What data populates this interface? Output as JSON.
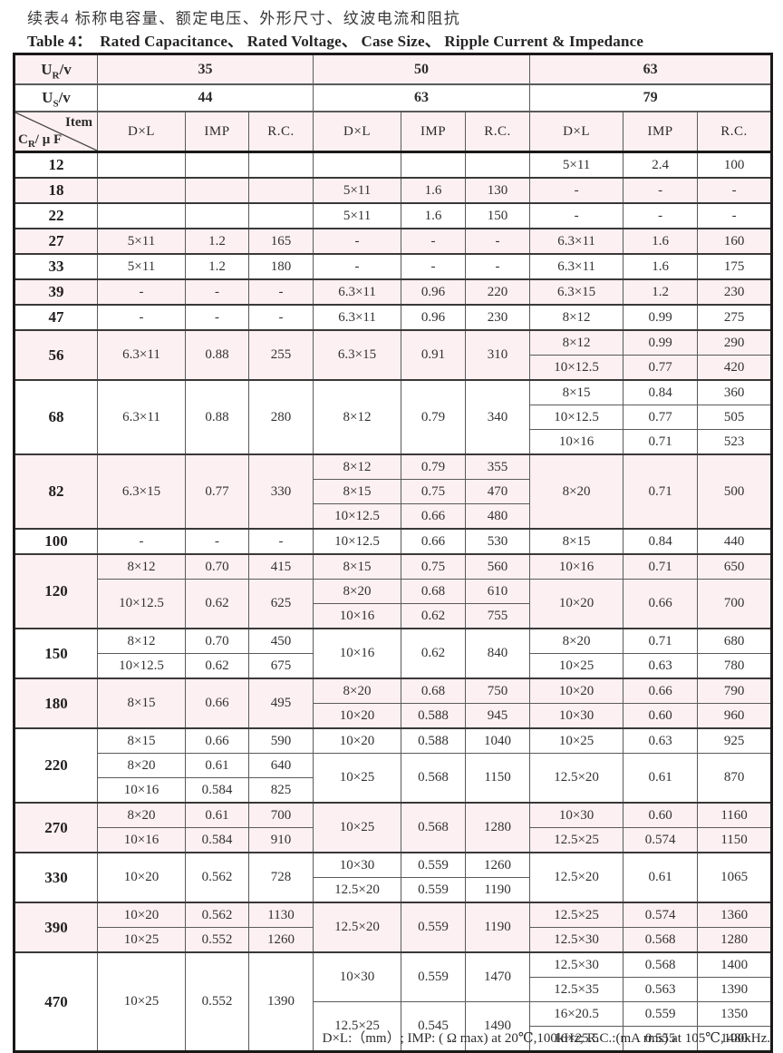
{
  "page": {
    "title_cn": "续表4 标称电容量、额定电压、外形尺寸、纹波电流和阻抗",
    "title_en_label": "Table 4：",
    "title_en": "Rated Capacitance、 Rated Voltage、 Case Size、 Ripple Current & Impedance",
    "footnote": "D×L:（mm）; IMP: ( Ω max) at 20℃,100kHz; R.C.:(mA rms) at 105℃,100kHz."
  },
  "colors": {
    "row_highlight": "#fcf0f2",
    "border_dark": "#1b1918",
    "text": "#2d2b2b"
  },
  "table": {
    "rated_voltage_label": [
      "U",
      "R",
      "/v"
    ],
    "surge_voltage_label": [
      "U",
      "S",
      "/v"
    ],
    "item_label": "Item",
    "cr_label": [
      "C",
      "R",
      "/ μ F"
    ],
    "voltages": [
      "35",
      "50",
      "63"
    ],
    "surge_voltages": [
      "44",
      "63",
      "79"
    ],
    "col_headers": [
      "D×L",
      "IMP",
      "R.C."
    ],
    "rows": [
      {
        "cr": "12",
        "subrows": 1,
        "shaded": false,
        "groups": {
          "v35": [
            {
              "span": 1,
              "dxl": "",
              "imp": "",
              "rc": ""
            }
          ],
          "v50": [
            {
              "span": 1,
              "dxl": "",
              "imp": "",
              "rc": ""
            }
          ],
          "v63": [
            {
              "span": 1,
              "dxl": "5×11",
              "imp": "2.4",
              "rc": "100"
            }
          ]
        }
      },
      {
        "cr": "18",
        "subrows": 1,
        "shaded": true,
        "groups": {
          "v35": [
            {
              "span": 1,
              "dxl": "",
              "imp": "",
              "rc": ""
            }
          ],
          "v50": [
            {
              "span": 1,
              "dxl": "5×11",
              "imp": "1.6",
              "rc": "130"
            }
          ],
          "v63": [
            {
              "span": 1,
              "dxl": "-",
              "imp": "-",
              "rc": "-"
            }
          ]
        }
      },
      {
        "cr": "22",
        "subrows": 1,
        "shaded": false,
        "groups": {
          "v35": [
            {
              "span": 1,
              "dxl": "",
              "imp": "",
              "rc": ""
            }
          ],
          "v50": [
            {
              "span": 1,
              "dxl": "5×11",
              "imp": "1.6",
              "rc": "150"
            }
          ],
          "v63": [
            {
              "span": 1,
              "dxl": "-",
              "imp": "-",
              "rc": "-"
            }
          ]
        }
      },
      {
        "cr": "27",
        "subrows": 1,
        "shaded": true,
        "groups": {
          "v35": [
            {
              "span": 1,
              "dxl": "5×11",
              "imp": "1.2",
              "rc": "165"
            }
          ],
          "v50": [
            {
              "span": 1,
              "dxl": "-",
              "imp": "-",
              "rc": "-"
            }
          ],
          "v63": [
            {
              "span": 1,
              "dxl": "6.3×11",
              "imp": "1.6",
              "rc": "160"
            }
          ]
        }
      },
      {
        "cr": "33",
        "subrows": 1,
        "shaded": false,
        "groups": {
          "v35": [
            {
              "span": 1,
              "dxl": "5×11",
              "imp": "1.2",
              "rc": "180"
            }
          ],
          "v50": [
            {
              "span": 1,
              "dxl": "-",
              "imp": "-",
              "rc": "-"
            }
          ],
          "v63": [
            {
              "span": 1,
              "dxl": "6.3×11",
              "imp": "1.6",
              "rc": "175"
            }
          ]
        }
      },
      {
        "cr": "39",
        "subrows": 1,
        "shaded": true,
        "groups": {
          "v35": [
            {
              "span": 1,
              "dxl": "-",
              "imp": "-",
              "rc": "-"
            }
          ],
          "v50": [
            {
              "span": 1,
              "dxl": "6.3×11",
              "imp": "0.96",
              "rc": "220"
            }
          ],
          "v63": [
            {
              "span": 1,
              "dxl": "6.3×15",
              "imp": "1.2",
              "rc": "230"
            }
          ]
        }
      },
      {
        "cr": "47",
        "subrows": 1,
        "shaded": false,
        "groups": {
          "v35": [
            {
              "span": 1,
              "dxl": "-",
              "imp": "-",
              "rc": "-"
            }
          ],
          "v50": [
            {
              "span": 1,
              "dxl": "6.3×11",
              "imp": "0.96",
              "rc": "230"
            }
          ],
          "v63": [
            {
              "span": 1,
              "dxl": "8×12",
              "imp": "0.99",
              "rc": "275"
            }
          ]
        }
      },
      {
        "cr": "56",
        "subrows": 2,
        "shaded": true,
        "groups": {
          "v35": [
            {
              "span": 2,
              "dxl": "6.3×11",
              "imp": "0.88",
              "rc": "255"
            }
          ],
          "v50": [
            {
              "span": 2,
              "dxl": "6.3×15",
              "imp": "0.91",
              "rc": "310"
            }
          ],
          "v63": [
            {
              "span": 1,
              "dxl": "8×12",
              "imp": "0.99",
              "rc": "290"
            },
            {
              "span": 1,
              "dxl": "10×12.5",
              "imp": "0.77",
              "rc": "420"
            }
          ]
        }
      },
      {
        "cr": "68",
        "subrows": 3,
        "shaded": false,
        "groups": {
          "v35": [
            {
              "span": 3,
              "dxl": "6.3×11",
              "imp": "0.88",
              "rc": "280"
            }
          ],
          "v50": [
            {
              "span": 3,
              "dxl": "8×12",
              "imp": "0.79",
              "rc": "340"
            }
          ],
          "v63": [
            {
              "span": 1,
              "dxl": "8×15",
              "imp": "0.84",
              "rc": "360"
            },
            {
              "span": 1,
              "dxl": "10×12.5",
              "imp": "0.77",
              "rc": "505"
            },
            {
              "span": 1,
              "dxl": "10×16",
              "imp": "0.71",
              "rc": "523"
            }
          ]
        }
      },
      {
        "cr": "82",
        "subrows": 3,
        "shaded": true,
        "groups": {
          "v35": [
            {
              "span": 3,
              "dxl": "6.3×15",
              "imp": "0.77",
              "rc": "330"
            }
          ],
          "v50": [
            {
              "span": 1,
              "dxl": "8×12",
              "imp": "0.79",
              "rc": "355"
            },
            {
              "span": 1,
              "dxl": "8×15",
              "imp": "0.75",
              "rc": "470"
            },
            {
              "span": 1,
              "dxl": "10×12.5",
              "imp": "0.66",
              "rc": "480"
            }
          ],
          "v63": [
            {
              "span": 3,
              "dxl": "8×20",
              "imp": "0.71",
              "rc": "500"
            }
          ]
        }
      },
      {
        "cr": "100",
        "subrows": 1,
        "shaded": false,
        "groups": {
          "v35": [
            {
              "span": 1,
              "dxl": "-",
              "imp": "-",
              "rc": "-"
            }
          ],
          "v50": [
            {
              "span": 1,
              "dxl": "10×12.5",
              "imp": "0.66",
              "rc": "530"
            }
          ],
          "v63": [
            {
              "span": 1,
              "dxl": "8×15",
              "imp": "0.84",
              "rc": "440"
            }
          ]
        }
      },
      {
        "cr": "120",
        "subrows": 3,
        "shaded": true,
        "groups": {
          "v35": [
            {
              "span": 1,
              "dxl": "8×12",
              "imp": "0.70",
              "rc": "415"
            },
            {
              "span": 2,
              "dxl": "10×12.5",
              "imp": "0.62",
              "rc": "625"
            }
          ],
          "v50": [
            {
              "span": 1,
              "dxl": "8×15",
              "imp": "0.75",
              "rc": "560"
            },
            {
              "span": 1,
              "dxl": "8×20",
              "imp": "0.68",
              "rc": "610"
            },
            {
              "span": 1,
              "dxl": "10×16",
              "imp": "0.62",
              "rc": "755"
            }
          ],
          "v63": [
            {
              "span": 1,
              "dxl": "10×16",
              "imp": "0.71",
              "rc": "650"
            },
            {
              "span": 2,
              "dxl": "10×20",
              "imp": "0.66",
              "rc": "700"
            }
          ]
        }
      },
      {
        "cr": "150",
        "subrows": 2,
        "shaded": false,
        "groups": {
          "v35": [
            {
              "span": 1,
              "dxl": "8×12",
              "imp": "0.70",
              "rc": "450"
            },
            {
              "span": 1,
              "dxl": "10×12.5",
              "imp": "0.62",
              "rc": "675"
            }
          ],
          "v50": [
            {
              "span": 2,
              "dxl": "10×16",
              "imp": "0.62",
              "rc": "840"
            }
          ],
          "v63": [
            {
              "span": 1,
              "dxl": "8×20",
              "imp": "0.71",
              "rc": "680"
            },
            {
              "span": 1,
              "dxl": "10×25",
              "imp": "0.63",
              "rc": "780"
            }
          ]
        }
      },
      {
        "cr": "180",
        "subrows": 2,
        "shaded": true,
        "groups": {
          "v35": [
            {
              "span": 2,
              "dxl": "8×15",
              "imp": "0.66",
              "rc": "495"
            }
          ],
          "v50": [
            {
              "span": 1,
              "dxl": "8×20",
              "imp": "0.68",
              "rc": "750"
            },
            {
              "span": 1,
              "dxl": "10×20",
              "imp": "0.588",
              "rc": "945"
            }
          ],
          "v63": [
            {
              "span": 1,
              "dxl": "10×20",
              "imp": "0.66",
              "rc": "790"
            },
            {
              "span": 1,
              "dxl": "10×30",
              "imp": "0.60",
              "rc": "960"
            }
          ]
        }
      },
      {
        "cr": "220",
        "subrows": 3,
        "shaded": false,
        "groups": {
          "v35": [
            {
              "span": 1,
              "dxl": "8×15",
              "imp": "0.66",
              "rc": "590"
            },
            {
              "span": 1,
              "dxl": "8×20",
              "imp": "0.61",
              "rc": "640"
            },
            {
              "span": 1,
              "dxl": "10×16",
              "imp": "0.584",
              "rc": "825"
            }
          ],
          "v50": [
            {
              "span": 1,
              "dxl": "10×20",
              "imp": "0.588",
              "rc": "1040"
            },
            {
              "span": 2,
              "dxl": "10×25",
              "imp": "0.568",
              "rc": "1150"
            }
          ],
          "v63": [
            {
              "span": 1,
              "dxl": "10×25",
              "imp": "0.63",
              "rc": "925"
            },
            {
              "span": 2,
              "dxl": "12.5×20",
              "imp": "0.61",
              "rc": "870"
            }
          ]
        }
      },
      {
        "cr": "270",
        "subrows": 2,
        "shaded": true,
        "groups": {
          "v35": [
            {
              "span": 1,
              "dxl": "8×20",
              "imp": "0.61",
              "rc": "700"
            },
            {
              "span": 1,
              "dxl": "10×16",
              "imp": "0.584",
              "rc": "910"
            }
          ],
          "v50": [
            {
              "span": 2,
              "dxl": "10×25",
              "imp": "0.568",
              "rc": "1280"
            }
          ],
          "v63": [
            {
              "span": 1,
              "dxl": "10×30",
              "imp": "0.60",
              "rc": "1160"
            },
            {
              "span": 1,
              "dxl": "12.5×25",
              "imp": "0.574",
              "rc": "1150"
            }
          ]
        }
      },
      {
        "cr": "330",
        "subrows": 2,
        "shaded": false,
        "groups": {
          "v35": [
            {
              "span": 2,
              "dxl": "10×20",
              "imp": "0.562",
              "rc": "728"
            }
          ],
          "v50": [
            {
              "span": 1,
              "dxl": "10×30",
              "imp": "0.559",
              "rc": "1260"
            },
            {
              "span": 1,
              "dxl": "12.5×20",
              "imp": "0.559",
              "rc": "1190"
            }
          ],
          "v63": [
            {
              "span": 2,
              "dxl": "12.5×20",
              "imp": "0.61",
              "rc": "1065"
            }
          ]
        }
      },
      {
        "cr": "390",
        "subrows": 2,
        "shaded": true,
        "groups": {
          "v35": [
            {
              "span": 1,
              "dxl": "10×20",
              "imp": "0.562",
              "rc": "1130"
            },
            {
              "span": 1,
              "dxl": "10×25",
              "imp": "0.552",
              "rc": "1260"
            }
          ],
          "v50": [
            {
              "span": 2,
              "dxl": "12.5×20",
              "imp": "0.559",
              "rc": "1190"
            }
          ],
          "v63": [
            {
              "span": 1,
              "dxl": "12.5×25",
              "imp": "0.574",
              "rc": "1360"
            },
            {
              "span": 1,
              "dxl": "12.5×30",
              "imp": "0.568",
              "rc": "1280"
            }
          ]
        }
      },
      {
        "cr": "470",
        "subrows": 4,
        "shaded": false,
        "groups": {
          "v35": [
            {
              "span": 4,
              "dxl": "10×25",
              "imp": "0.552",
              "rc": "1390"
            }
          ],
          "v50": [
            {
              "span": 2,
              "dxl": "10×30",
              "imp": "0.559",
              "rc": "1470"
            },
            {
              "span": 2,
              "dxl": "12.5×25",
              "imp": "0.545",
              "rc": "1490"
            }
          ],
          "v63": [
            {
              "span": 1,
              "dxl": "12.5×30",
              "imp": "0.568",
              "rc": "1400"
            },
            {
              "span": 1,
              "dxl": "12.5×35",
              "imp": "0.563",
              "rc": "1390"
            },
            {
              "span": 1,
              "dxl": "16×20.5",
              "imp": "0.559",
              "rc": "1350"
            },
            {
              "span": 1,
              "dxl": "16×25.5",
              "imp": "0.555",
              "rc": "1480"
            }
          ]
        }
      }
    ]
  }
}
